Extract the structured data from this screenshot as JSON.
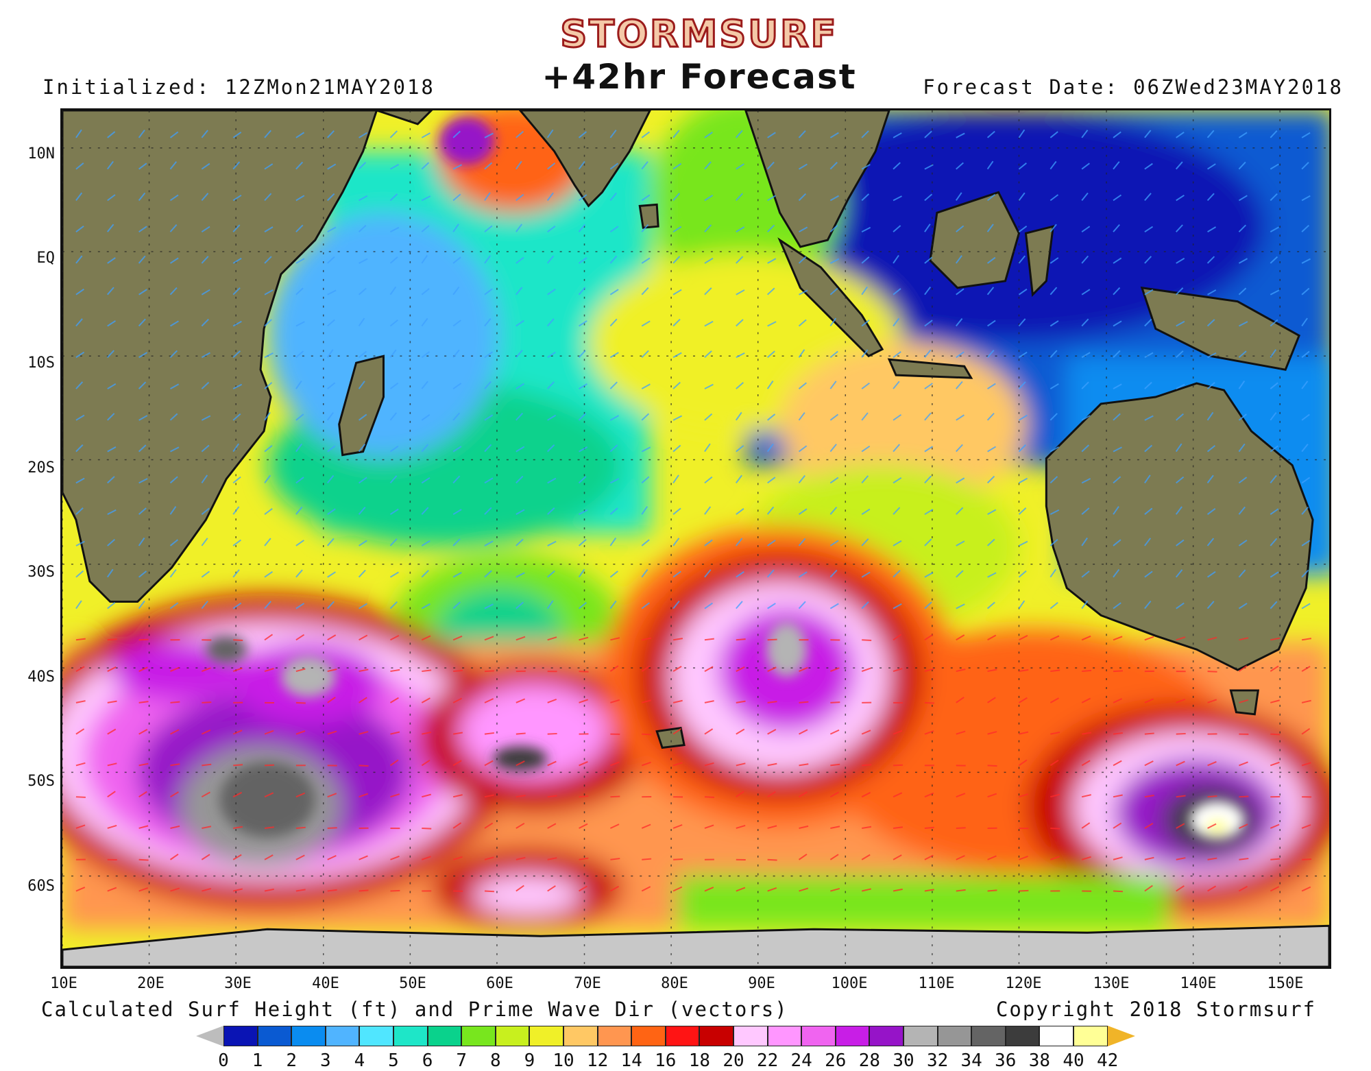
{
  "header": {
    "logo": "STORMSURF",
    "title": "+42hr Forecast",
    "initialized": "Initialized: 12ZMon21MAY2018",
    "forecast_date": "Forecast Date: 06ZWed23MAY2018"
  },
  "map": {
    "lat_labels": [
      "10N",
      "EQ",
      "10S",
      "20S",
      "30S",
      "40S",
      "50S",
      "60S"
    ],
    "lon_labels": [
      "10E",
      "20E",
      "30E",
      "40E",
      "50E",
      "60E",
      "70E",
      "80E",
      "90E",
      "100E",
      "110E",
      "120E",
      "130E",
      "140E",
      "150E"
    ],
    "colors": {
      "land": "#7d7b52",
      "land_dark": "#6a683f",
      "antarctic_ice": "#c8c8c8",
      "arrow_light": "#3fa0ff",
      "arrow_strong": "#ff2a2a"
    }
  },
  "caption": {
    "left": "Calculated Surf Height (ft) and Prime Wave Dir (vectors)",
    "right": "Copyright 2018 Stormsurf"
  },
  "legend": {
    "ticks": [
      "0",
      "1",
      "2",
      "3",
      "4",
      "5",
      "6",
      "7",
      "8",
      "9",
      "10",
      "12",
      "14",
      "16",
      "18",
      "20",
      "22",
      "24",
      "26",
      "28",
      "30",
      "32",
      "34",
      "36",
      "38",
      "40",
      "42"
    ],
    "colors": [
      "#0a14b4",
      "#0a5ad2",
      "#0a8cf0",
      "#50b4ff",
      "#50e6ff",
      "#1ee6c8",
      "#0ad28c",
      "#78e61e",
      "#c8f01e",
      "#f0f028",
      "#ffc864",
      "#ff9650",
      "#ff6414",
      "#ff1414",
      "#c80000",
      "#ffc8ff",
      "#ff96ff",
      "#f064f0",
      "#c81ee6",
      "#9614c8",
      "#b4b4b4",
      "#969696",
      "#646464",
      "#3c3c3c",
      "#ffffff",
      "#ffff96"
    ],
    "low_color": "#bdbdbd",
    "high_color": "#f0b428"
  }
}
